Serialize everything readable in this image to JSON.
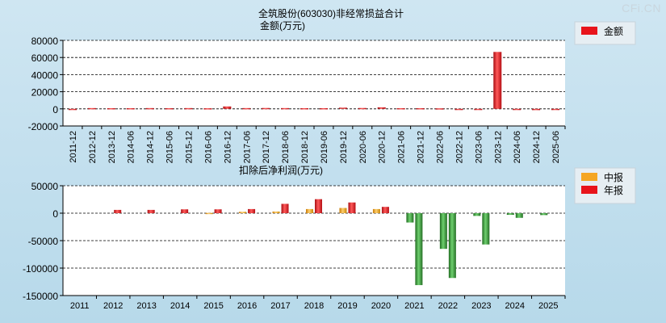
{
  "watermark": "CFi.CN",
  "chart_data": [
    {
      "type": "bar",
      "title": "全筑股份(603030)非经常损益合计",
      "subtitle": "金额(万元)",
      "categories": [
        "2011-12",
        "2012-12",
        "2013-12",
        "2014-06",
        "2014-12",
        "2015-06",
        "2015-12",
        "2016-06",
        "2016-12",
        "2017-06",
        "2017-12",
        "2018-06",
        "2018-12",
        "2019-06",
        "2019-12",
        "2020-06",
        "2020-12",
        "2021-06",
        "2021-12",
        "2022-06",
        "2022-12",
        "2023-06",
        "2023-12",
        "2024-06",
        "2024-12",
        "2025-06"
      ],
      "series": [
        {
          "name": "金额",
          "color": "#e8141b",
          "values": [
            0,
            900,
            800,
            800,
            900,
            800,
            900,
            700,
            2800,
            900,
            1000,
            900,
            800,
            800,
            1400,
            1000,
            1800,
            800,
            800,
            600,
            -400,
            0,
            66500,
            0,
            -1500,
            0
          ]
        }
      ],
      "ylim": [
        -20000,
        80000
      ],
      "yticks": [
        "80000",
        "60000",
        "40000",
        "20000",
        "0",
        "-20000"
      ],
      "grid": true,
      "legend_position": "right"
    },
    {
      "type": "bar",
      "title": "扣除后净利润(万元)",
      "categories": [
        "2011",
        "2012",
        "2013",
        "2014",
        "2015",
        "2016",
        "2017",
        "2018",
        "2019",
        "2020",
        "2021",
        "2022",
        "2023",
        "2024",
        "2025"
      ],
      "series": [
        {
          "name": "中报",
          "color": "#f5a623",
          "values": [
            null,
            null,
            null,
            null,
            500,
            2500,
            3000,
            7500,
            9500,
            7500,
            -17000,
            -65000,
            -5000,
            -3000,
            -3500
          ]
        },
        {
          "name": "年报",
          "color": "#e8141b",
          "negative_color": "#3a9a3a",
          "values": [
            null,
            6000,
            6000,
            7000,
            7000,
            7500,
            17000,
            25500,
            19500,
            11500,
            -131000,
            -118000,
            -57000,
            -8500,
            null
          ]
        }
      ],
      "ylim": [
        -150000,
        50000
      ],
      "yticks": [
        "50000",
        "0",
        "-50000",
        "-100000",
        "-150000"
      ],
      "grid": true,
      "legend_position": "right"
    }
  ]
}
